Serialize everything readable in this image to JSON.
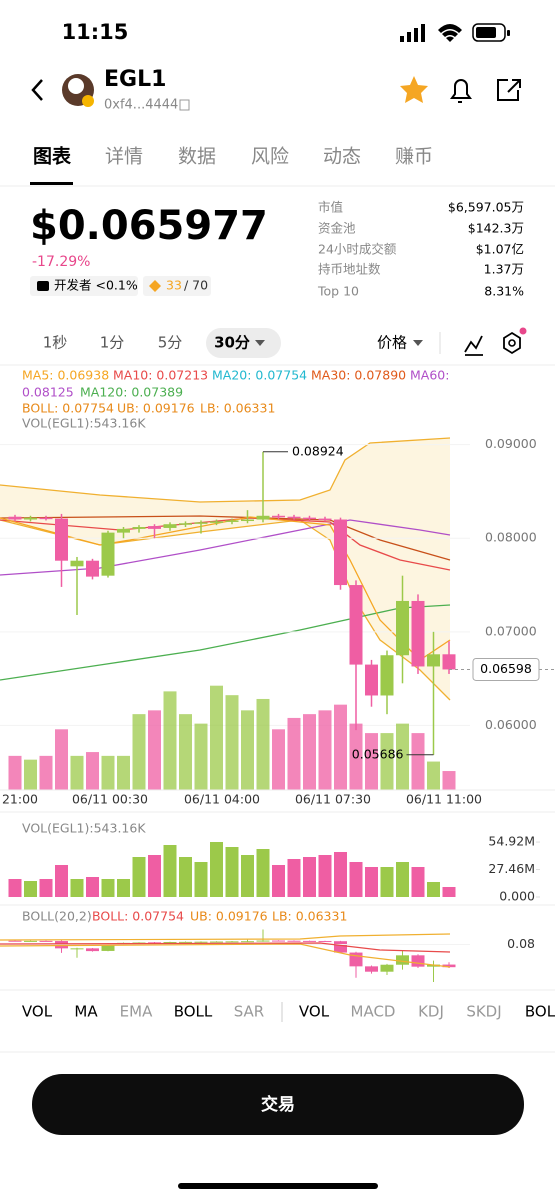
{
  "status": {
    "time": "11:15"
  },
  "header": {
    "name": "EGL1",
    "address": "0xf4...4444"
  },
  "tabs": [
    "图表",
    "详情",
    "数据",
    "风险",
    "动态",
    "赚币"
  ],
  "price": {
    "value": "$0.065977",
    "change": "-17.29%",
    "dev": "开发者 <0.1%",
    "score": "33",
    "score_total": "/ 70"
  },
  "stats": [
    {
      "label": "市值",
      "value": "$6,597.05万"
    },
    {
      "label": "资金池",
      "value": "$142.3万"
    },
    {
      "label": "24小时成交额",
      "value": "$1.07亿"
    },
    {
      "label": "持币地址数",
      "value": "1.37万"
    },
    {
      "label": "Top 10",
      "value": "8.31%"
    }
  ],
  "intervals": [
    "1秒",
    "1分",
    "5分",
    "30分"
  ],
  "price_mode": "价格",
  "indicators": {
    "ma5": "MA5: 0.06938",
    "ma10": "MA10: 0.07213",
    "ma20": "MA20: 0.07754",
    "ma30": "MA30: 0.07890",
    "ma60_label": "MA60:",
    "ma60_value": "0.08125",
    "ma120": "MA120: 0.07389",
    "boll": "BOLL: 0.07754",
    "ub": "UB: 0.09176",
    "lb": "LB: 0.06331",
    "vol": "VOL(EGL1):543.16K"
  },
  "chart": {
    "type": "candlestick",
    "ylim": [
      0.0531,
      0.0921
    ],
    "yticks": [
      {
        "value": 0.09,
        "label": "0.09000"
      },
      {
        "value": 0.08,
        "label": "0.08000"
      },
      {
        "value": 0.07,
        "label": "0.07000"
      },
      {
        "value": 0.06,
        "label": "0.06000"
      }
    ],
    "current": {
      "value": 0.06598,
      "label": "0.06598"
    },
    "high_label": "0.08924",
    "low_label": "0.05686",
    "time_axis": [
      "21:00",
      "06/11 00:30",
      "06/11 04:00",
      "06/11 07:30",
      "06/11 11:00"
    ],
    "candles": [
      [
        0.0823,
        0.0825,
        0.0818,
        0.082
      ],
      [
        0.082,
        0.0824,
        0.0818,
        0.0822
      ],
      [
        0.0822,
        0.0824,
        0.0819,
        0.0821
      ],
      [
        0.0821,
        0.0826,
        0.0748,
        0.0776
      ],
      [
        0.077,
        0.078,
        0.0718,
        0.0776
      ],
      [
        0.0776,
        0.0778,
        0.0756,
        0.0759
      ],
      [
        0.076,
        0.0808,
        0.0758,
        0.0806
      ],
      [
        0.0806,
        0.0812,
        0.08,
        0.081
      ],
      [
        0.081,
        0.0814,
        0.0806,
        0.0812
      ],
      [
        0.0813,
        0.0815,
        0.08,
        0.081
      ],
      [
        0.0811,
        0.0817,
        0.0808,
        0.0815
      ],
      [
        0.0815,
        0.0818,
        0.0812,
        0.0816
      ],
      [
        0.0816,
        0.0819,
        0.0805,
        0.0817
      ],
      [
        0.0817,
        0.082,
        0.0814,
        0.0818
      ],
      [
        0.0818,
        0.0821,
        0.0815,
        0.0819
      ],
      [
        0.0819,
        0.083,
        0.0816,
        0.082
      ],
      [
        0.082,
        0.08924,
        0.0817,
        0.0824
      ],
      [
        0.0824,
        0.0826,
        0.082,
        0.0823
      ],
      [
        0.0823,
        0.0825,
        0.082,
        0.0822
      ],
      [
        0.0822,
        0.0824,
        0.0819,
        0.0821
      ],
      [
        0.0821,
        0.0823,
        0.0818,
        0.082
      ],
      [
        0.082,
        0.0822,
        0.0745,
        0.075
      ],
      [
        0.075,
        0.0755,
        0.0595,
        0.0665
      ],
      [
        0.0665,
        0.067,
        0.062,
        0.0632
      ],
      [
        0.0632,
        0.068,
        0.0612,
        0.0675
      ],
      [
        0.0675,
        0.076,
        0.0645,
        0.0733
      ],
      [
        0.0733,
        0.074,
        0.0655,
        0.0663
      ],
      [
        0.0663,
        0.07,
        0.05686,
        0.0676
      ],
      [
        0.0676,
        0.069,
        0.0655,
        0.06598
      ]
    ],
    "volumes": [
      18,
      16,
      18,
      32,
      18,
      20,
      18,
      18,
      40,
      42,
      52,
      40,
      35,
      55,
      50,
      42,
      48,
      32,
      38,
      40,
      42,
      45,
      35,
      30,
      30,
      35,
      30,
      15,
      10
    ],
    "vlim": [
      0,
      58
    ],
    "vticks": [
      {
        "value": 54.92,
        "label": "54.92M"
      },
      {
        "value": 27.46,
        "label": "27.46M"
      },
      {
        "value": 0,
        "label": "0.000"
      }
    ],
    "boll_title": "BOLL(20,2)",
    "boll_lim": [
      0.055,
      0.092
    ],
    "boll_tick": {
      "value": 0.08,
      "label": "0.08"
    }
  },
  "indicator_tabs": [
    "VOL",
    "MA",
    "EMA",
    "BOLL",
    "SAR",
    "VOL",
    "MACD",
    "KDJ",
    "SKDJ",
    "BOL"
  ],
  "trade_button": "交易"
}
